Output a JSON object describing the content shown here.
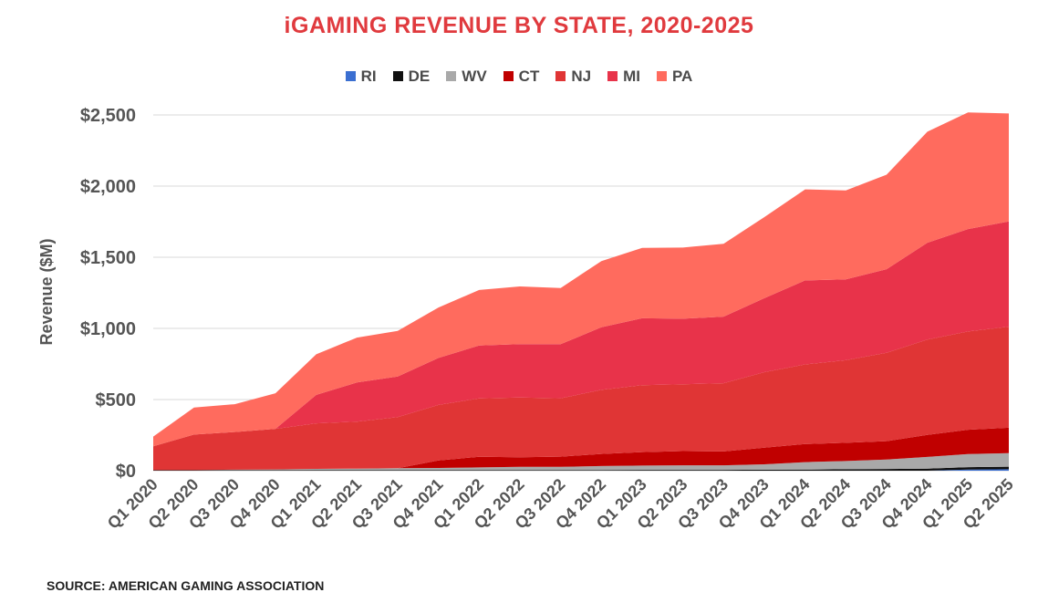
{
  "chart_data": {
    "type": "area",
    "stacked": true,
    "title": "iGAMING REVENUE BY STATE, 2020-2025",
    "ylabel": "Revenue ($M)",
    "xlabel": "",
    "ylim": [
      0,
      2500
    ],
    "yticks": [
      "$0",
      "$500",
      "$1,000",
      "$1,500",
      "$2,000",
      "$2,500"
    ],
    "ytick_values": [
      0,
      500,
      1000,
      1500,
      2000,
      2500
    ],
    "grid": true,
    "legend_position": "top-center",
    "categories": [
      "Q1 2020",
      "Q2 2020",
      "Q3 2020",
      "Q4 2020",
      "Q1 2021",
      "Q2 2021",
      "Q3 2021",
      "Q4 2021",
      "Q1 2022",
      "Q2 2022",
      "Q3 2022",
      "Q4 2022",
      "Q1 2023",
      "Q2 2023",
      "Q3 2023",
      "Q4 2023",
      "Q1 2024",
      "Q2 2024",
      "Q3 2024",
      "Q4 2024",
      "Q1 2025",
      "Q2 2025"
    ],
    "series": [
      {
        "name": "RI",
        "color": "#3b6fd1",
        "values": [
          0,
          0,
          0,
          0,
          0,
          0,
          0,
          0,
          0,
          0,
          0,
          0,
          0,
          0,
          0,
          0,
          0,
          0,
          0,
          0,
          8,
          10
        ]
      },
      {
        "name": "DE",
        "color": "#111111",
        "values": [
          4,
          4,
          4,
          4,
          5,
          5,
          5,
          5,
          5,
          5,
          5,
          5,
          6,
          6,
          6,
          7,
          8,
          10,
          12,
          15,
          17,
          18
        ]
      },
      {
        "name": "WV",
        "color": "#a9a9a9",
        "values": [
          0,
          0,
          3,
          5,
          8,
          10,
          12,
          14,
          18,
          22,
          22,
          28,
          30,
          32,
          32,
          38,
          52,
          58,
          66,
          82,
          92,
          96
        ]
      },
      {
        "name": "CT",
        "color": "#c00000",
        "values": [
          0,
          0,
          0,
          0,
          0,
          0,
          0,
          53,
          75,
          68,
          72,
          85,
          95,
          100,
          97,
          117,
          127,
          128,
          130,
          155,
          171,
          178
        ]
      },
      {
        "name": "NJ",
        "color": "#e03535",
        "values": [
          168,
          250,
          265,
          285,
          320,
          330,
          360,
          390,
          410,
          420,
          410,
          450,
          470,
          470,
          480,
          530,
          560,
          580,
          620,
          670,
          690,
          710
        ]
      },
      {
        "name": "MI",
        "color": "#e8334a",
        "values": [
          0,
          0,
          0,
          0,
          200,
          275,
          285,
          330,
          372,
          375,
          380,
          440,
          470,
          460,
          468,
          520,
          590,
          568,
          588,
          680,
          720,
          740
        ]
      },
      {
        "name": "PA",
        "color": "#ff6b5e",
        "values": [
          68,
          190,
          195,
          250,
          285,
          315,
          320,
          355,
          390,
          405,
          395,
          465,
          495,
          500,
          512,
          570,
          640,
          626,
          664,
          780,
          820,
          758
        ]
      }
    ],
    "source": "SOURCE: AMERICAN GAMING ASSOCIATION"
  }
}
